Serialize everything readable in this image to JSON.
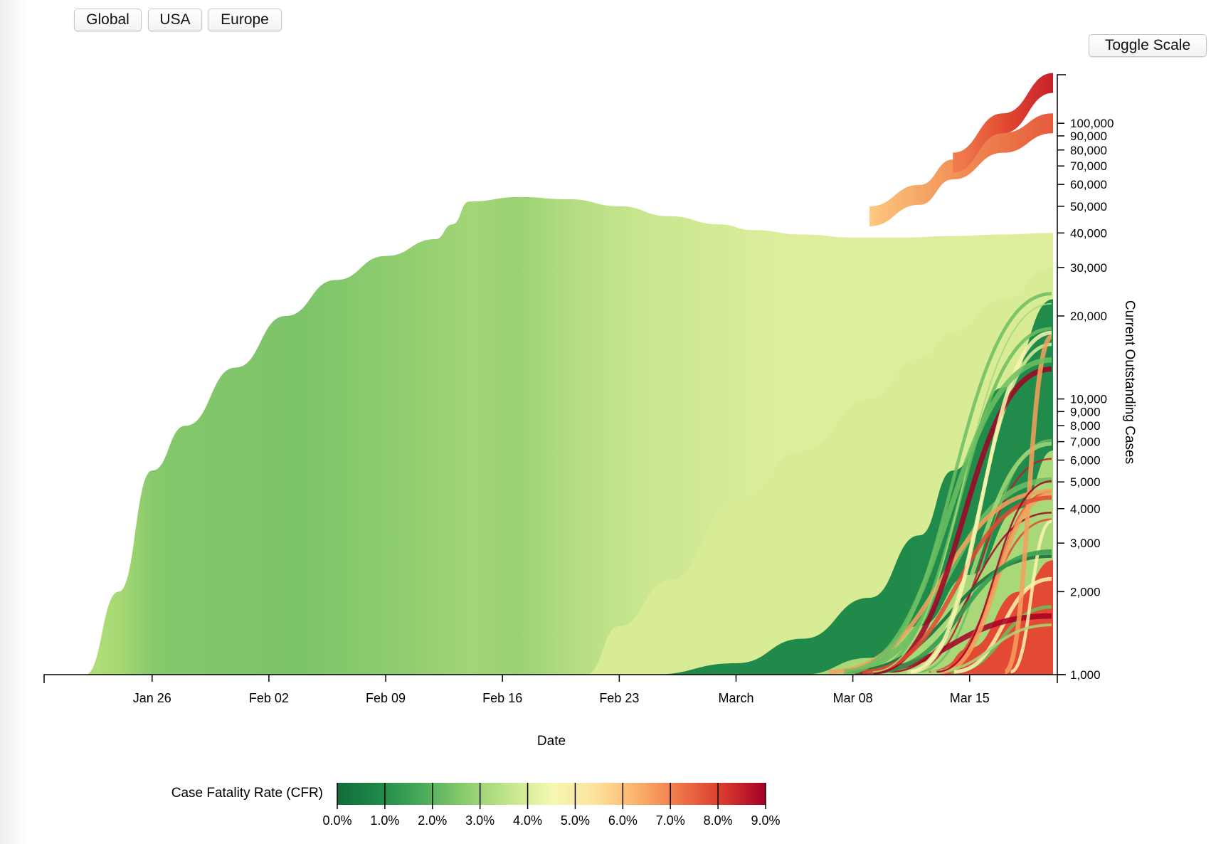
{
  "buttons": {
    "global": "Global",
    "usa": "USA",
    "europe": "Europe",
    "toggle_scale": "Toggle Scale"
  },
  "chart_data": {
    "type": "area",
    "subtype": "stacked streamgraph, each stream colored by case fatality rate",
    "xlabel": "Date",
    "ylabel": "Current Outstanding Cases",
    "y_scale": "log",
    "ylim": [
      1000,
      150000
    ],
    "x_range": [
      "2020-01-22",
      "2020-03-20"
    ],
    "x_ticks": [
      {
        "date": "2020-01-26",
        "label": "Jan 26"
      },
      {
        "date": "2020-02-02",
        "label": "Feb 02"
      },
      {
        "date": "2020-02-09",
        "label": "Feb 09"
      },
      {
        "date": "2020-02-16",
        "label": "Feb 16"
      },
      {
        "date": "2020-02-23",
        "label": "Feb 23"
      },
      {
        "date": "2020-03-01",
        "label": "March"
      },
      {
        "date": "2020-03-08",
        "label": "Mar 08"
      },
      {
        "date": "2020-03-15",
        "label": "Mar 15"
      }
    ],
    "y_ticks": [
      {
        "value": 1000,
        "label": "1,000"
      },
      {
        "value": 2000,
        "label": "2,000"
      },
      {
        "value": 3000,
        "label": "3,000"
      },
      {
        "value": 4000,
        "label": "4,000"
      },
      {
        "value": 5000,
        "label": "5,000"
      },
      {
        "value": 6000,
        "label": "6,000"
      },
      {
        "value": 7000,
        "label": "7,000"
      },
      {
        "value": 8000,
        "label": "8,000"
      },
      {
        "value": 9000,
        "label": "9,000"
      },
      {
        "value": 10000,
        "label": "10,000"
      },
      {
        "value": 20000,
        "label": "20,000"
      },
      {
        "value": 30000,
        "label": "30,000"
      },
      {
        "value": 40000,
        "label": "40,000"
      },
      {
        "value": 50000,
        "label": "50,000"
      },
      {
        "value": 60000,
        "label": "60,000"
      },
      {
        "value": 70000,
        "label": "70,000"
      },
      {
        "value": 80000,
        "label": "80,000"
      },
      {
        "value": 90000,
        "label": "90,000"
      },
      {
        "value": 100000,
        "label": "100,000"
      }
    ],
    "series": [
      {
        "color": "#7fc46a",
        "points": [
          [
            "2020-01-22",
            1000
          ],
          [
            "2020-01-24",
            2000
          ],
          [
            "2020-01-26",
            5500
          ],
          [
            "2020-01-28",
            8000
          ],
          [
            "2020-01-31",
            13000
          ],
          [
            "2020-02-03",
            20000
          ],
          [
            "2020-02-06",
            27000
          ],
          [
            "2020-02-09",
            33000
          ],
          [
            "2020-02-12",
            38000
          ],
          [
            "2020-02-13",
            43000
          ],
          [
            "2020-02-14",
            52000
          ],
          [
            "2020-02-17",
            54000
          ],
          [
            "2020-02-20",
            53000
          ],
          [
            "2020-02-23",
            50000
          ],
          [
            "2020-02-26",
            46000
          ],
          [
            "2020-02-29",
            43000
          ],
          [
            "2020-03-02",
            41000
          ],
          [
            "2020-03-05",
            39500
          ],
          [
            "2020-03-08",
            38500
          ],
          [
            "2020-03-11",
            38500
          ],
          [
            "2020-03-14",
            39000
          ],
          [
            "2020-03-17",
            39500
          ],
          [
            "2020-03-20",
            40000
          ]
        ]
      },
      {
        "color": "#d8ec95",
        "points": [
          [
            "2020-02-21",
            1000
          ],
          [
            "2020-02-23",
            1500
          ],
          [
            "2020-02-26",
            2200
          ],
          [
            "2020-03-01",
            4200
          ],
          [
            "2020-03-05",
            6500
          ],
          [
            "2020-03-09",
            10000
          ],
          [
            "2020-03-12",
            14000
          ],
          [
            "2020-03-14",
            17500
          ],
          [
            "2020-03-17",
            23000
          ],
          [
            "2020-03-20",
            30000
          ]
        ]
      },
      {
        "color": "#1f8a49",
        "points": [
          [
            "2020-02-25",
            1000
          ],
          [
            "2020-03-01",
            1100
          ],
          [
            "2020-03-05",
            1350
          ],
          [
            "2020-03-09",
            1900
          ],
          [
            "2020-03-12",
            3200
          ],
          [
            "2020-03-14",
            5500
          ],
          [
            "2020-03-17",
            11000
          ],
          [
            "2020-03-20",
            23000
          ]
        ]
      },
      {
        "color": "#a8d878",
        "points": [
          [
            "2020-03-05",
            1000
          ],
          [
            "2020-03-09",
            1150
          ],
          [
            "2020-03-12",
            1500
          ],
          [
            "2020-03-15",
            2300
          ],
          [
            "2020-03-18",
            4000
          ],
          [
            "2020-03-20",
            6500
          ]
        ]
      },
      {
        "color": "#e34a33",
        "points": [
          [
            "2020-03-13",
            1000
          ],
          [
            "2020-03-15",
            1250
          ],
          [
            "2020-03-18",
            2000
          ],
          [
            "2020-03-20",
            2600
          ]
        ]
      },
      {
        "color": "#f6a05c",
        "points": [
          [
            "2020-03-09",
            46000
          ],
          [
            "2020-03-12",
            55000
          ],
          [
            "2020-03-14",
            68000
          ],
          [
            "2020-03-17",
            85000
          ],
          [
            "2020-03-20",
            100000
          ]
        ]
      },
      {
        "color": "#e0372c",
        "points": [
          [
            "2020-03-14",
            72000
          ],
          [
            "2020-03-17",
            100000
          ],
          [
            "2020-03-20",
            140000
          ]
        ]
      }
    ],
    "legend": {
      "title": "Case Fatality Rate (CFR)",
      "position": "bottom-left",
      "colors": [
        "#136b3a",
        "#2e9a4f",
        "#6cbe61",
        "#a8d878",
        "#d9ef98",
        "#faf5b0",
        "#fdd387",
        "#f6a05c",
        "#e34a33",
        "#bd1d2d",
        "#a50026"
      ],
      "tick_labels": [
        "0.0%",
        "1.0%",
        "2.0%",
        "3.0%",
        "4.0%",
        "5.0%",
        "6.0%",
        "7.0%",
        "8.0%",
        "9.0%"
      ]
    }
  }
}
